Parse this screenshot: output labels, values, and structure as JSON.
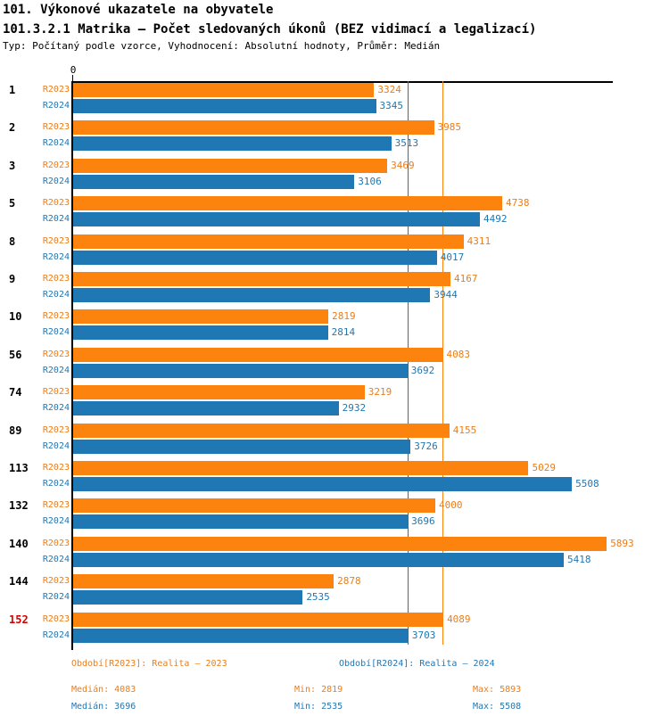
{
  "header": {
    "title": "101. Výkonové ukazatele na obyvatele",
    "subtitle": "101.3.2.1 Matrika – Počet sledovaných úkonů (BEZ vidimací a legalizací)",
    "meta": "Typ: Počítaný podle vzorce, Vyhodnocení: Absolutní hodnoty, Průměr: Medián"
  },
  "colors": {
    "bar_orange": "#fc830d",
    "bar_blue": "#1f77b4",
    "text_orange": "#ed7d17",
    "text_blue": "#1f77b4",
    "highlight": "#d60000",
    "axis": "#000000"
  },
  "chart_data": {
    "type": "bar",
    "orientation": "horizontal",
    "title": "101.3.2.1 Matrika – Počet sledovaných úkonů (BEZ vidimací a legalizací)",
    "categories": [
      "1",
      "2",
      "3",
      "5",
      "8",
      "9",
      "10",
      "56",
      "74",
      "89",
      "113",
      "132",
      "140",
      "144",
      "152"
    ],
    "highlighted_category": "152",
    "series": [
      {
        "name": "R2023",
        "color": "#fc830d",
        "text_color": "#ed7d17",
        "values": [
          3324,
          3985,
          3469,
          4738,
          4311,
          4167,
          2819,
          4083,
          3219,
          4155,
          5029,
          4000,
          5893,
          2878,
          4089
        ]
      },
      {
        "name": "R2024",
        "color": "#1f77b4",
        "text_color": "#1f77b4",
        "values": [
          3345,
          3513,
          3106,
          4492,
          4017,
          3944,
          2814,
          3692,
          2932,
          3726,
          5508,
          3696,
          5418,
          2535,
          3703
        ]
      }
    ],
    "median_lines": [
      {
        "series": "R2023",
        "value": 4083,
        "color": "#fc830d"
      },
      {
        "series": "R2024",
        "value": 3696,
        "color": "#1f77b4"
      }
    ],
    "xlim": [
      0,
      5960
    ],
    "x_origin_label": "0",
    "grid": false,
    "value_labels": true,
    "legend_position": "bottom"
  },
  "legend": {
    "items": [
      {
        "label": "Období[R2023]: Realita – 2023",
        "color": "#ed7d17"
      },
      {
        "label": "Období[R2024]: Realita – 2024",
        "color": "#1f77b4"
      }
    ]
  },
  "stats": {
    "median_label": "Medián",
    "min_label": "Min",
    "max_label": "Max",
    "rows": [
      {
        "series": "R2023",
        "color": "#ed7d17",
        "median": 4083,
        "min": 2819,
        "max": 5893
      },
      {
        "series": "R2024",
        "color": "#1f77b4",
        "median": 3696,
        "min": 2535,
        "max": 5508
      }
    ]
  }
}
